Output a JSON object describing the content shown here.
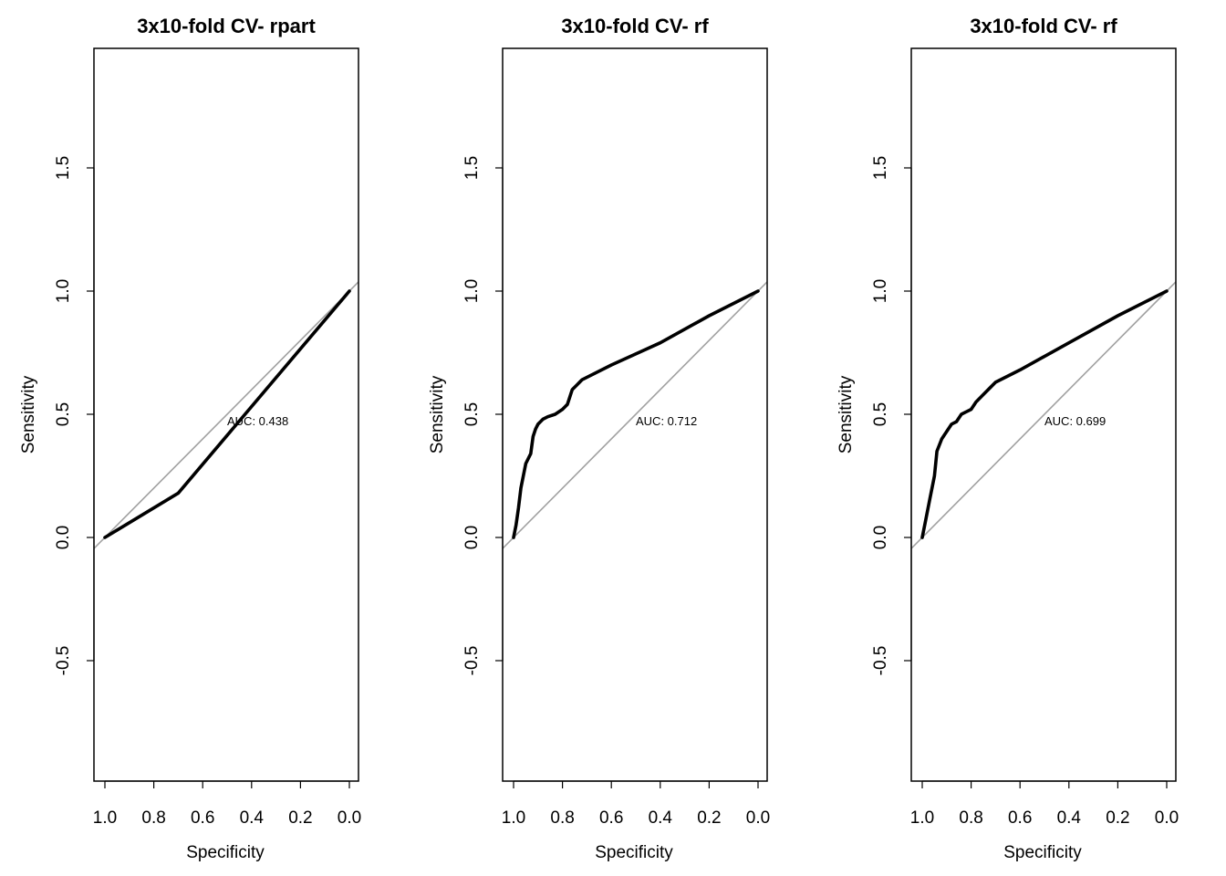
{
  "colors": {
    "roc": "#000000",
    "diagonal": "#a0a0a0",
    "frame": "#000000",
    "background": "#ffffff"
  },
  "chart_data": [
    {
      "type": "line",
      "title": "3x10-fold CV- rpart",
      "xlabel": "Specificity",
      "ylabel": "Sensitivity",
      "x_reversed": true,
      "xlim": [
        1.0,
        0.0
      ],
      "ylim": [
        -0.95,
        1.95
      ],
      "xticks": [
        "1.0",
        "0.8",
        "0.6",
        "0.4",
        "0.2",
        "0.0"
      ],
      "yticks": [
        "-0.5",
        "0.0",
        "0.5",
        "1.0",
        "1.5"
      ],
      "grid": false,
      "reference_line": "diagonal",
      "annotation": "AUC: 0.438",
      "series": [
        {
          "x": [
            1.0,
            0.7,
            0.0
          ],
          "y": [
            0.0,
            0.18,
            1.0
          ]
        }
      ]
    },
    {
      "type": "line",
      "title": "3x10-fold CV- rf",
      "xlabel": "Specificity",
      "ylabel": "Sensitivity",
      "x_reversed": true,
      "xlim": [
        1.0,
        0.0
      ],
      "ylim": [
        -0.95,
        1.95
      ],
      "xticks": [
        "1.0",
        "0.8",
        "0.6",
        "0.4",
        "0.2",
        "0.0"
      ],
      "yticks": [
        "-0.5",
        "0.0",
        "0.5",
        "1.0",
        "1.5"
      ],
      "grid": false,
      "reference_line": "diagonal",
      "annotation": "AUC: 0.712",
      "series": [
        {
          "x": [
            1.0,
            0.99,
            0.98,
            0.97,
            0.95,
            0.93,
            0.92,
            0.91,
            0.9,
            0.88,
            0.86,
            0.83,
            0.8,
            0.78,
            0.76,
            0.74,
            0.72,
            0.6,
            0.4,
            0.2,
            0.0
          ],
          "y": [
            0.0,
            0.05,
            0.12,
            0.2,
            0.3,
            0.34,
            0.41,
            0.44,
            0.46,
            0.48,
            0.49,
            0.5,
            0.52,
            0.54,
            0.6,
            0.62,
            0.64,
            0.7,
            0.79,
            0.9,
            1.0
          ]
        }
      ]
    },
    {
      "type": "line",
      "title": "3x10-fold CV- rf",
      "xlabel": "Specificity",
      "ylabel": "Sensitivity",
      "x_reversed": true,
      "xlim": [
        1.0,
        0.0
      ],
      "ylim": [
        -0.95,
        1.95
      ],
      "xticks": [
        "1.0",
        "0.8",
        "0.6",
        "0.4",
        "0.2",
        "0.0"
      ],
      "yticks": [
        "-0.5",
        "0.0",
        "0.5",
        "1.0",
        "1.5"
      ],
      "grid": false,
      "reference_line": "diagonal",
      "annotation": "AUC: 0.699",
      "series": [
        {
          "x": [
            1.0,
            0.99,
            0.97,
            0.95,
            0.94,
            0.92,
            0.9,
            0.88,
            0.86,
            0.84,
            0.82,
            0.8,
            0.78,
            0.75,
            0.72,
            0.7,
            0.6,
            0.4,
            0.2,
            0.0
          ],
          "y": [
            0.0,
            0.05,
            0.15,
            0.25,
            0.35,
            0.4,
            0.43,
            0.46,
            0.47,
            0.5,
            0.51,
            0.52,
            0.55,
            0.58,
            0.61,
            0.63,
            0.68,
            0.79,
            0.9,
            1.0
          ]
        }
      ]
    }
  ]
}
